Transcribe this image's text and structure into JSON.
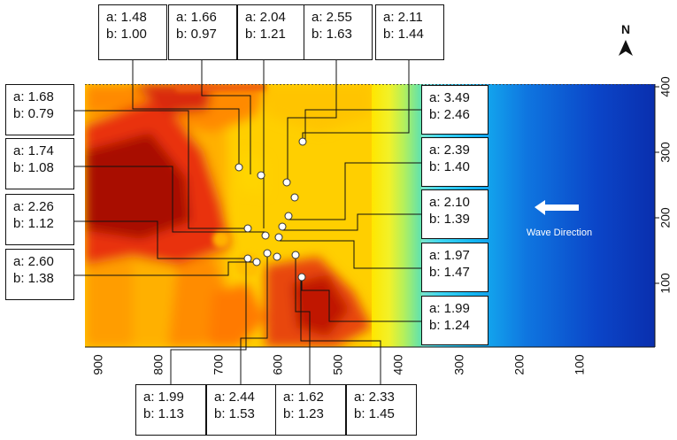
{
  "north_label": "N",
  "wave_label": "Wave Direction",
  "x_axis_ticks": [
    "900",
    "800",
    "700",
    "600",
    "500",
    "400",
    "300",
    "200",
    "100"
  ],
  "y_axis_ticks": [
    "400",
    "300",
    "200",
    "100"
  ],
  "labels": {
    "top1": {
      "a": "a: 1.48",
      "b": "b: 1.00"
    },
    "top2": {
      "a": "a: 1.66",
      "b": "b: 0.97"
    },
    "top3": {
      "a": "a: 2.04",
      "b": "b: 1.21"
    },
    "top4": {
      "a": "a: 2.55",
      "b": "b: 1.63"
    },
    "top5": {
      "a": "a: 2.11",
      "b": "b: 1.44"
    },
    "left1": {
      "a": "a: 1.68",
      "b": "b: 0.79"
    },
    "left2": {
      "a": "a: 1.74",
      "b": "b: 1.08"
    },
    "left3": {
      "a": "a: 2.26",
      "b": "b: 1.12"
    },
    "left4": {
      "a": "a: 2.60",
      "b": "b: 1.38"
    },
    "right1": {
      "a": "a: 3.49",
      "b": "b: 2.46"
    },
    "right2": {
      "a": "a: 2.39",
      "b": "b: 1.40"
    },
    "right3": {
      "a": "a: 2.10",
      "b": "b: 1.39"
    },
    "right4": {
      "a": "a: 1.97",
      "b": "b: 1.47"
    },
    "right5": {
      "a": "a: 1.99",
      "b": "b: 1.24"
    },
    "bottom1": {
      "a": "a: 1.99",
      "b": "b: 1.13"
    },
    "bottom2": {
      "a": "a: 2.44",
      "b": "b: 1.53"
    },
    "bottom3": {
      "a": "a: 1.62",
      "b": "b: 1.23"
    },
    "bottom4": {
      "a": "a: 2.33",
      "b": "b: 1.45"
    }
  }
}
